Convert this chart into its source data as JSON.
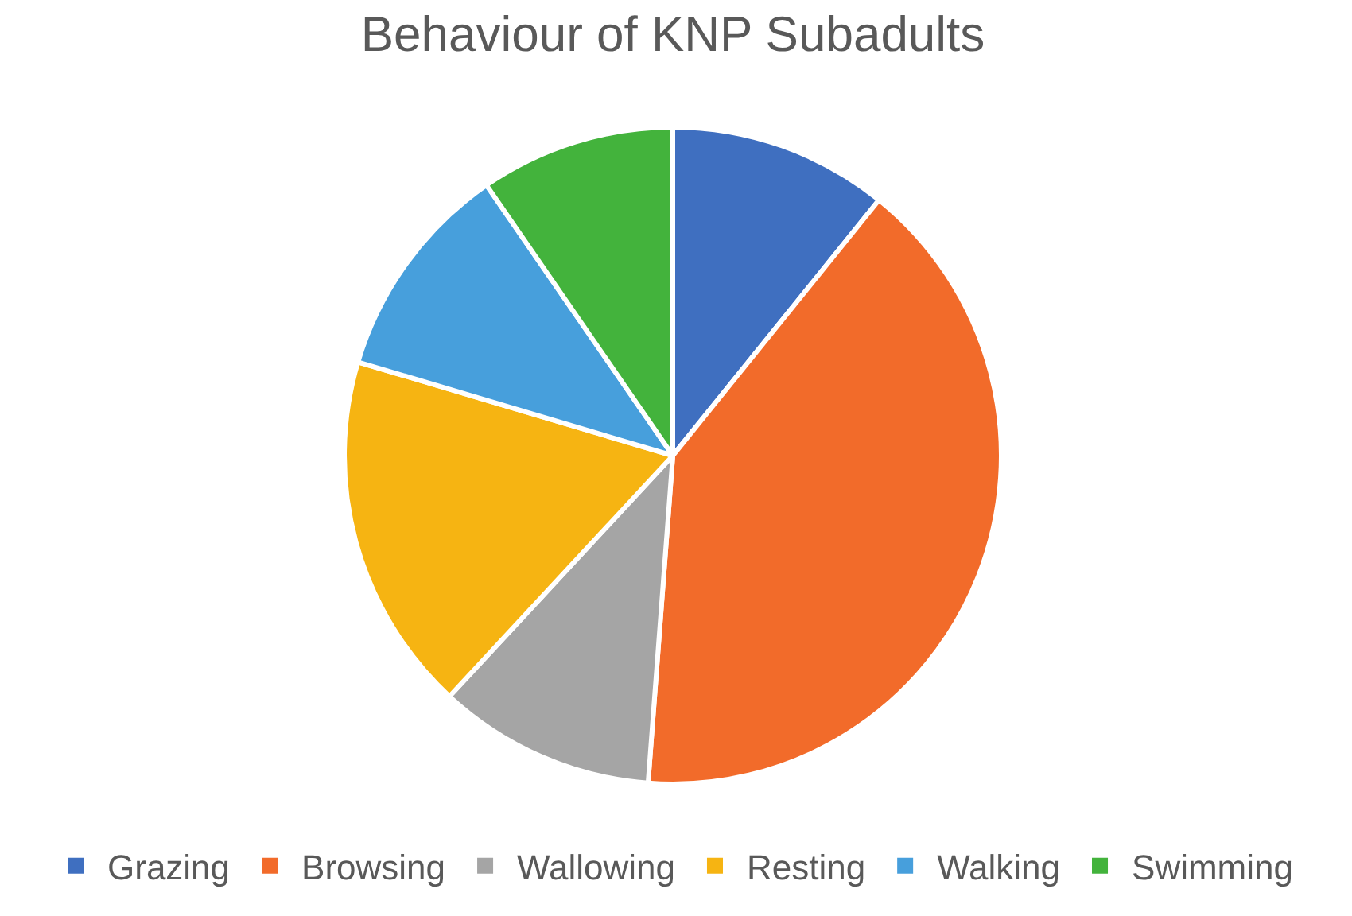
{
  "chart_data": {
    "type": "pie",
    "title": "Behaviour of KNP Subadults",
    "categories": [
      "Grazing",
      "Browsing",
      "Wallowing",
      "Resting",
      "Walking",
      "Swimming"
    ],
    "values": [
      10.8,
      40.4,
      10.7,
      17.7,
      10.8,
      9.6
    ],
    "colors": [
      "#3f6fc0",
      "#f26b2a",
      "#a5a5a5",
      "#f6b412",
      "#479fdc",
      "#43b33c"
    ],
    "legend": "bottom"
  }
}
